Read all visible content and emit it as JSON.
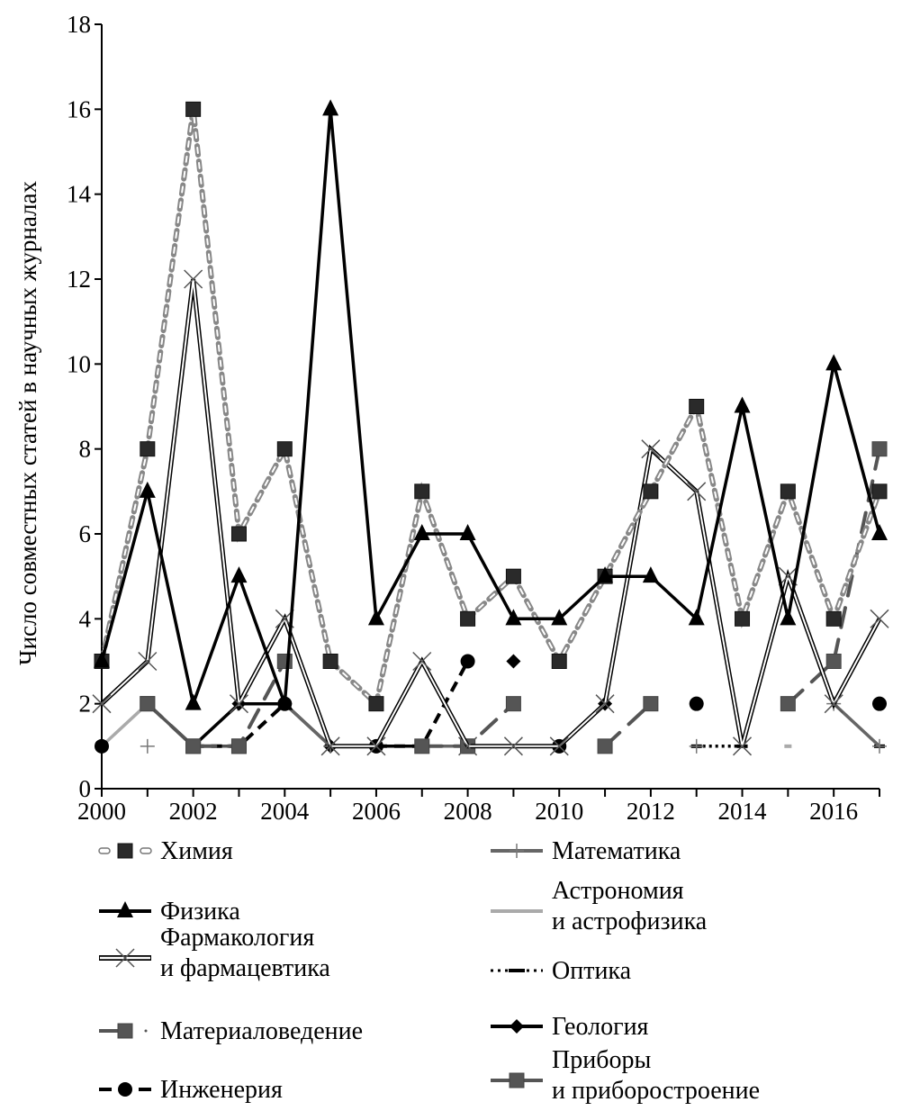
{
  "chart_data": {
    "type": "line",
    "title": "",
    "xlabel": "",
    "ylabel": "Число совместных статей в научных журналах",
    "xlim": [
      2000,
      2017
    ],
    "ylim": [
      0,
      18
    ],
    "x_ticks": [
      "2000",
      "2002",
      "2004",
      "2006",
      "2008",
      "2010",
      "2012",
      "2014",
      "2016"
    ],
    "y_ticks": [
      "0",
      "2",
      "4",
      "6",
      "8",
      "10",
      "12",
      "14",
      "16",
      "18"
    ],
    "grid": false,
    "legend_position": "bottom",
    "x": [
      2000,
      2001,
      2002,
      2003,
      2004,
      2005,
      2006,
      2007,
      2008,
      2009,
      2010,
      2011,
      2012,
      2013,
      2014,
      2015,
      2016,
      2017
    ],
    "series": [
      {
        "name": "Химия",
        "label_lines": [
          "Химия"
        ],
        "style": "chem",
        "color": "#888888",
        "marker_color": "#2a2a2a",
        "values": [
          3,
          8,
          16,
          6,
          8,
          3,
          2,
          7,
          4,
          5,
          3,
          5,
          7,
          9,
          4,
          7,
          4,
          7
        ]
      },
      {
        "name": "Физика",
        "label_lines": [
          "Физика"
        ],
        "style": "phys",
        "color": "#000000",
        "marker_color": "#000000",
        "values": [
          3,
          7,
          2,
          5,
          2,
          16,
          4,
          6,
          6,
          4,
          4,
          5,
          5,
          4,
          9,
          4,
          10,
          6
        ]
      },
      {
        "name": "Фармакология и фармацевтика",
        "label_lines": [
          "Фармакология",
          "и фармацевтика"
        ],
        "style": "pharm",
        "color": "#000000",
        "marker_color": "#555555",
        "values": [
          2,
          3,
          12,
          2,
          4,
          1,
          1,
          3,
          1,
          1,
          1,
          2,
          8,
          7,
          1,
          5,
          2,
          4
        ]
      },
      {
        "name": "Материаловедение",
        "label_lines": [
          "Материаловедение"
        ],
        "style": "mat",
        "color": "#555555",
        "marker_color": "#4a4a4a",
        "values": [
          null,
          2,
          1,
          1,
          3,
          null,
          null,
          1,
          1,
          2,
          null,
          1,
          2,
          null,
          null,
          2,
          3,
          8
        ]
      },
      {
        "name": "Инженерия",
        "label_lines": [
          "Инженерия"
        ],
        "style": "eng",
        "color": "#000000",
        "marker_color": "#000000",
        "values": [
          1,
          null,
          1,
          1,
          2,
          null,
          1,
          1,
          3,
          null,
          1,
          null,
          null,
          2,
          null,
          null,
          null,
          2
        ]
      },
      {
        "name": "Математика",
        "label_lines": [
          "Математика"
        ],
        "style": "math",
        "color": "#666666",
        "marker_color": "#777777",
        "values": [
          null,
          1,
          null,
          null,
          2,
          1,
          null,
          1,
          1,
          null,
          null,
          null,
          null,
          1,
          null,
          null,
          2,
          1
        ]
      },
      {
        "name": "Астрономия и астрофизика",
        "label_lines": [
          "Астрономия",
          "и астрофизика"
        ],
        "style": "astro",
        "color": "#aaaaaa",
        "marker_color": "#aaaaaa",
        "values": [
          1,
          2,
          null,
          null,
          null,
          null,
          null,
          null,
          null,
          1,
          1,
          null,
          null,
          null,
          null,
          1,
          null,
          null
        ]
      },
      {
        "name": "Оптика",
        "label_lines": [
          "Оптика"
        ],
        "style": "optics",
        "color": "#000000",
        "marker_color": "#000000",
        "values": [
          null,
          null,
          null,
          null,
          null,
          null,
          null,
          null,
          null,
          null,
          1,
          2,
          null,
          1,
          1,
          null,
          null,
          1
        ]
      },
      {
        "name": "Геология",
        "label_lines": [
          "Геология"
        ],
        "style": "geo",
        "color": "#000000",
        "marker_color": "#000000",
        "values": [
          null,
          null,
          1,
          2,
          2,
          1,
          1,
          1,
          null,
          3,
          null,
          2,
          null,
          null,
          null,
          null,
          null,
          null
        ]
      },
      {
        "name": "Приборы и приборостроение",
        "label_lines": [
          "Приборы",
          "и приборостроение"
        ],
        "style": "instr",
        "color": "#555555",
        "marker_color": "#555555",
        "values": [
          null,
          2,
          1,
          1,
          null,
          null,
          null,
          null,
          1,
          null,
          null,
          null,
          null,
          null,
          null,
          null,
          null,
          null
        ]
      }
    ]
  }
}
